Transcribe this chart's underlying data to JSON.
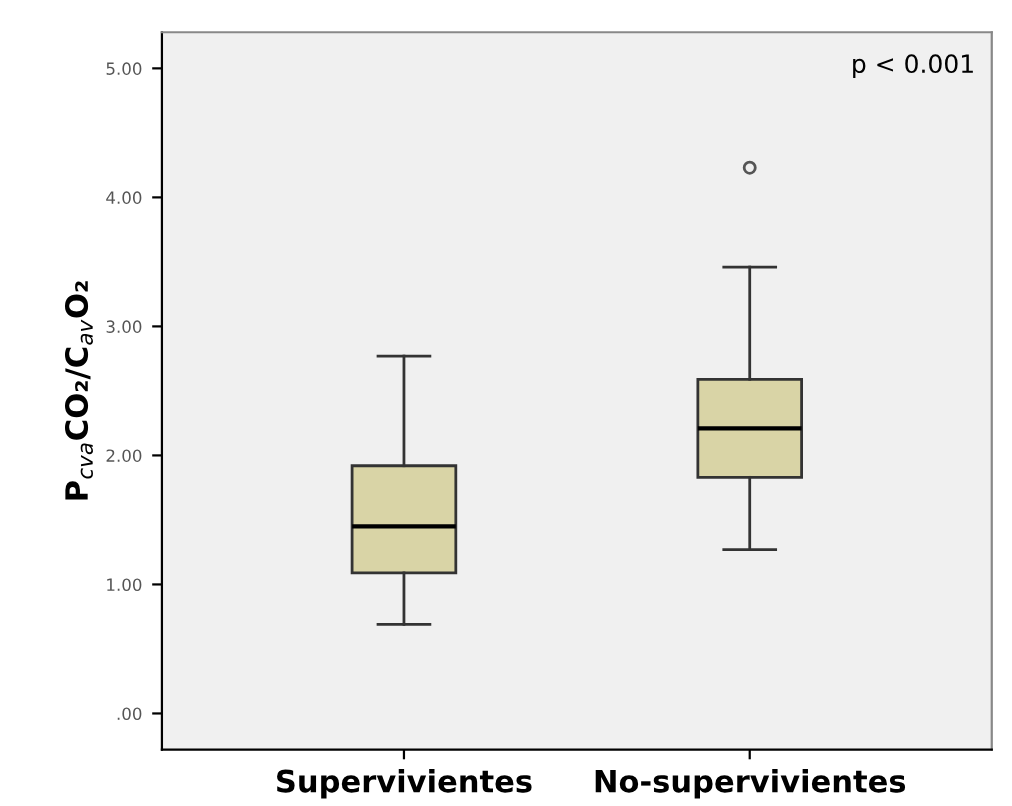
{
  "chart_data": {
    "type": "box",
    "ylabel": "P$_{cva}$CO₂/C$_{av}$O₂",
    "categories": [
      "Supervivientes",
      "No-supervivientes"
    ],
    "boxes": [
      {
        "low": 0.69,
        "q1": 1.09,
        "median": 1.45,
        "q3": 1.92,
        "high": 2.77
      },
      {
        "low": 1.27,
        "q1": 1.83,
        "median": 2.21,
        "q3": 2.59,
        "high": 3.46,
        "outliers": [
          4.23
        ]
      }
    ],
    "color": "#d9d4a6",
    "ylim": [
      -0.28,
      5.28
    ],
    "yticks": [
      {
        "value": 0,
        "label": ".00"
      },
      {
        "value": 1,
        "label": "1.00"
      },
      {
        "value": 2,
        "label": "2.00"
      },
      {
        "value": 3,
        "label": "3.00"
      },
      {
        "value": 4,
        "label": "4.00"
      },
      {
        "value": 5,
        "label": "5.00"
      }
    ],
    "grid": false,
    "legend": false,
    "annotations": [
      "p < 0.001"
    ]
  }
}
